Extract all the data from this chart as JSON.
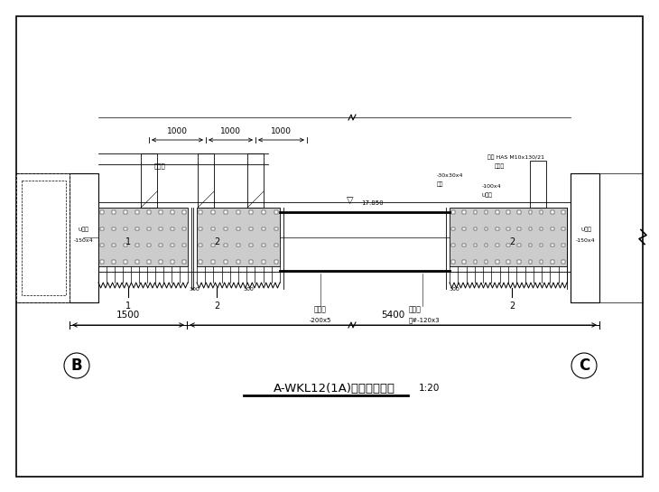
{
  "bg_color": "#ffffff",
  "title_main": "A-WKL12(1A)粘钢加固图一",
  "title_scale": "1:20",
  "circle_B": "B",
  "circle_C": "C",
  "dim_bottom_left": "1500",
  "dim_bottom_right": "5400",
  "dim_top_1": "1000",
  "dim_top_2": "1000",
  "dim_top_3": "1000",
  "label_U_left": "U型箍",
  "label_U_left2": "-150x4",
  "label_U_right": "U型箍",
  "label_U_right2": "-150x4",
  "label_U_mid": "U型箍",
  "label_U_mid2": "-100x4",
  "label_zujian": "止裂板",
  "label_steel_plate": "钢板",
  "label_steel_plate2": "-30x30x4",
  "label_anchor_title": "化学锚",
  "label_anchor_detail": "锚栓 HAS M10x130/21",
  "label_web": "加腹板",
  "label_web2": "-200x5",
  "label_flange": "钢压板",
  "label_flange2": "两#-120x3",
  "label_elev": "17.850",
  "label_300": "300"
}
